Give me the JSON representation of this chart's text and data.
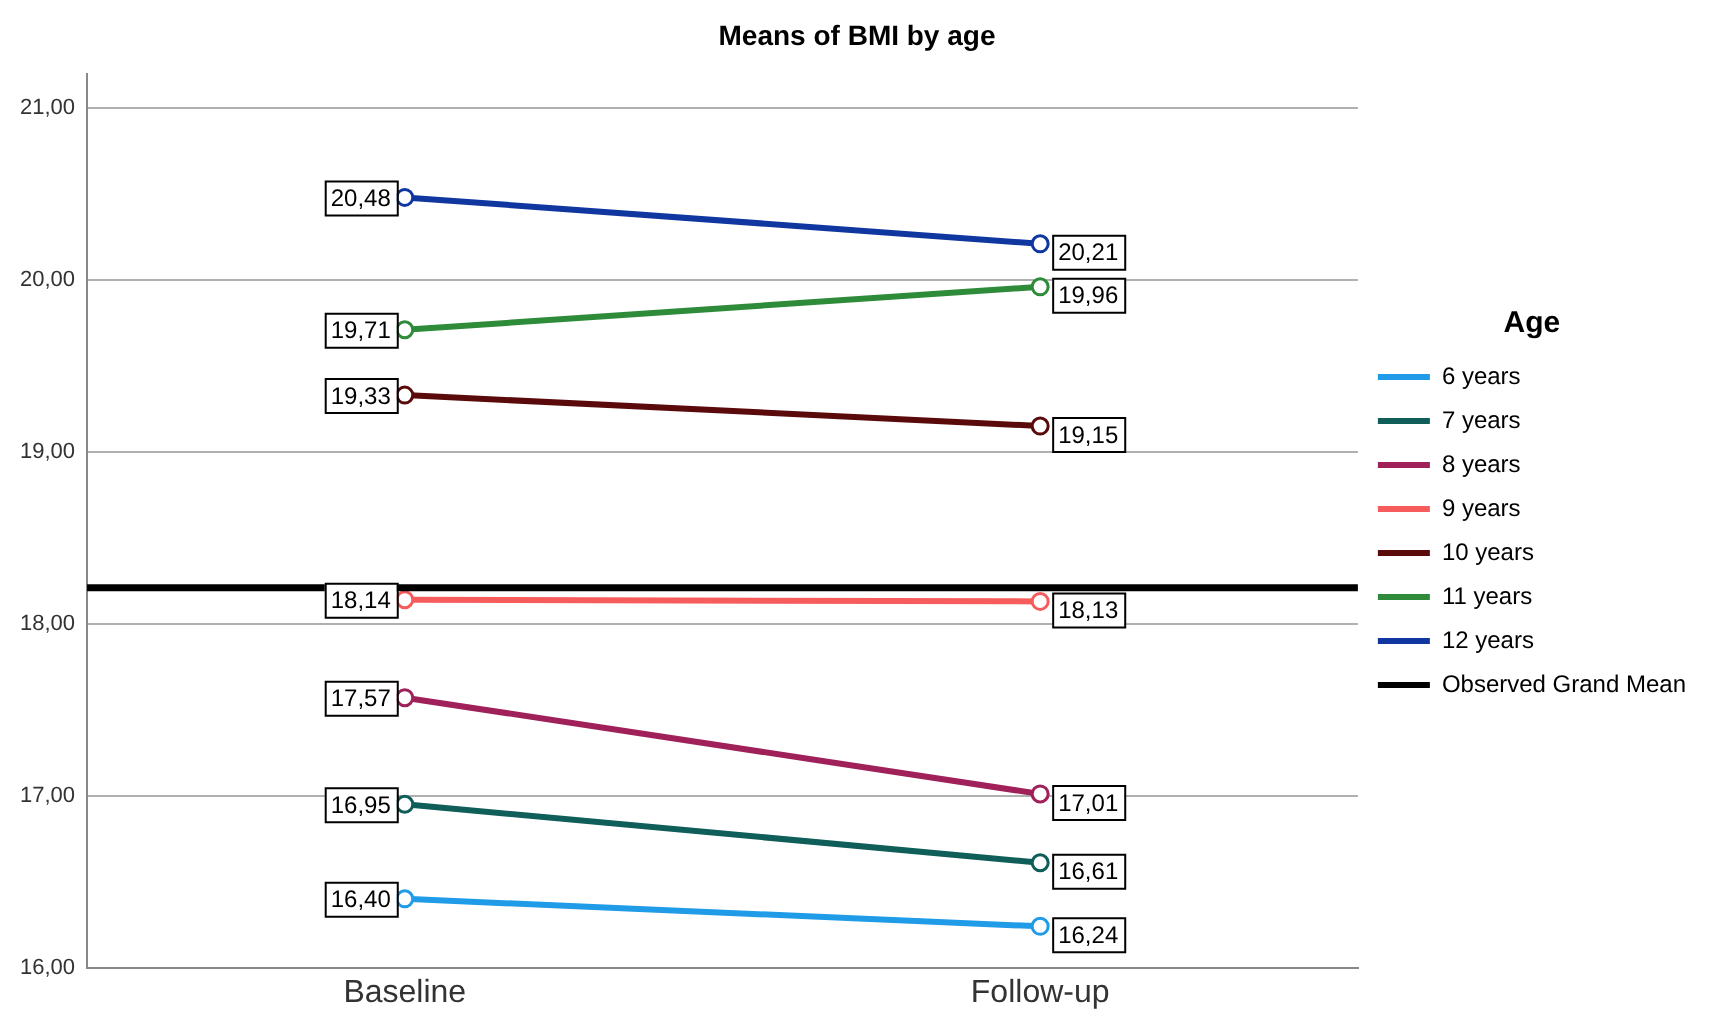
{
  "chart_data": {
    "type": "line",
    "title": "Means of BMI by age",
    "legend_title": "Age",
    "categories": [
      "Baseline",
      "Follow-up"
    ],
    "series": [
      {
        "name": "6 years",
        "color": "#1f9be8",
        "values": [
          16.4,
          16.24
        ],
        "value_labels": [
          "16,40",
          "16,24"
        ]
      },
      {
        "name": "7 years",
        "color": "#0f5e5a",
        "values": [
          16.95,
          16.61
        ],
        "value_labels": [
          "16,95",
          "16,61"
        ]
      },
      {
        "name": "8 years",
        "color": "#a0205a",
        "values": [
          17.57,
          17.01
        ],
        "value_labels": [
          "17,57",
          "17,01"
        ]
      },
      {
        "name": "9 years",
        "color": "#f75c5c",
        "values": [
          18.14,
          18.13
        ],
        "value_labels": [
          "18,14",
          "18,13"
        ]
      },
      {
        "name": "10 years",
        "color": "#5a0a0a",
        "values": [
          19.33,
          19.15
        ],
        "value_labels": [
          "19,33",
          "19,15"
        ]
      },
      {
        "name": "11 years",
        "color": "#2e8b3a",
        "values": [
          19.71,
          19.96
        ],
        "value_labels": [
          "19,71",
          "19,96"
        ]
      },
      {
        "name": "12 years",
        "color": "#1037a0",
        "values": [
          20.48,
          20.21
        ],
        "value_labels": [
          "20,48",
          "20,21"
        ]
      }
    ],
    "ref_lines": [
      {
        "axis": "y",
        "value": 18.21,
        "label": "Observed Grand Mean",
        "color": "#000000"
      }
    ],
    "ylim": [
      16,
      21.2
    ],
    "yticks": [
      {
        "value": 16,
        "label": "16,00"
      },
      {
        "value": 17,
        "label": "17,00"
      },
      {
        "value": 18,
        "label": "18,00"
      },
      {
        "value": 19,
        "label": "19,00"
      },
      {
        "value": 20,
        "label": "20,00"
      },
      {
        "value": 21,
        "label": "21,00"
      }
    ],
    "grid": "y",
    "legend": "right",
    "marker": "circle",
    "line_style": "solid"
  }
}
